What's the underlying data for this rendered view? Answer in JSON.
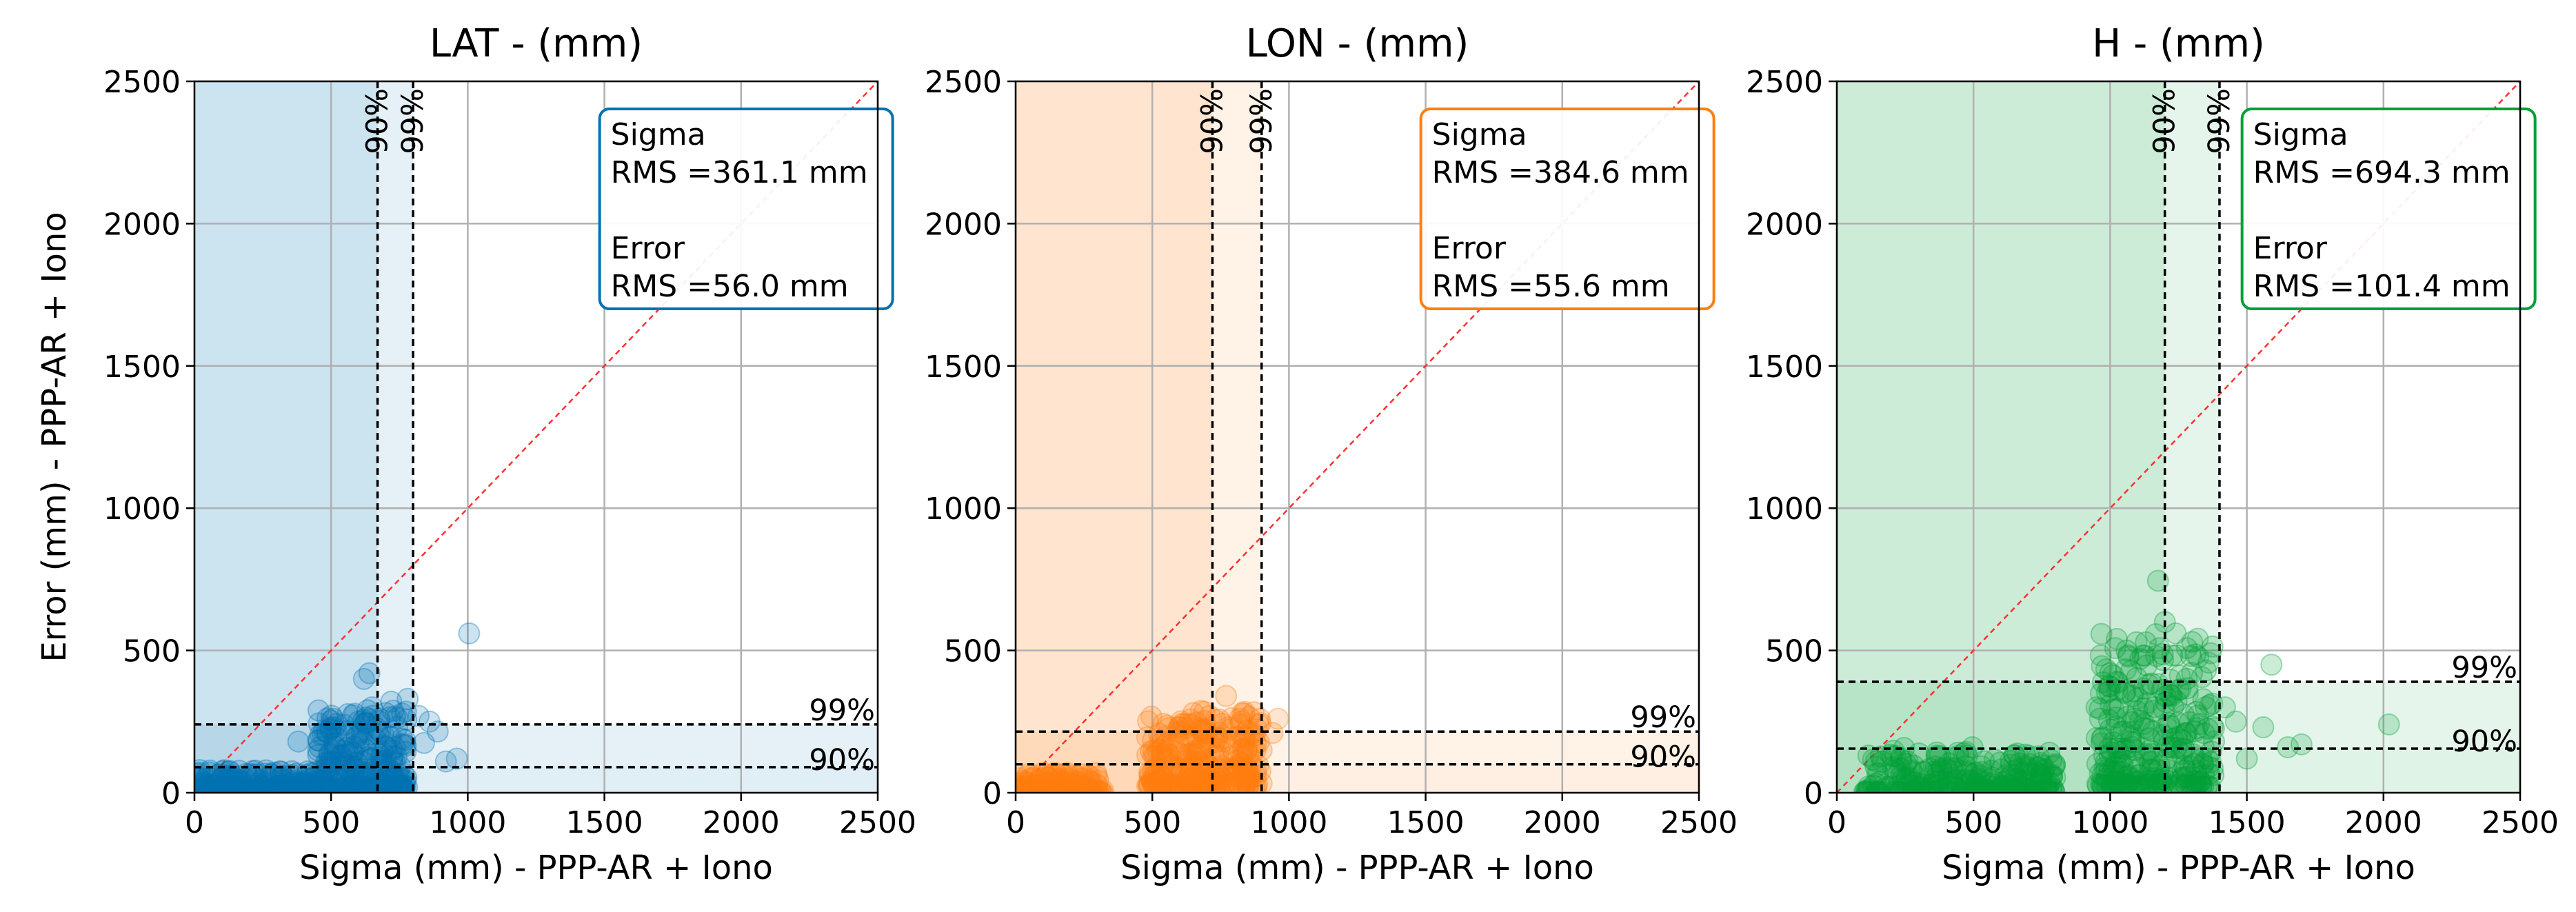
{
  "chart_data": [
    {
      "type": "scatter",
      "title": "LAT - (mm)",
      "xlabel": "Sigma  (mm) - PPP-AR + Iono",
      "ylabel": "Error  (mm) - PPP-AR + Iono",
      "xlim": [
        0,
        2500
      ],
      "ylim": [
        0,
        2500
      ],
      "xticks": [
        "0",
        "500",
        "1000",
        "1500",
        "2000",
        "2500"
      ],
      "yticks": [
        "0",
        "500",
        "1000",
        "1500",
        "2000",
        "2500"
      ],
      "grid": true,
      "color": "#0072B2",
      "sigma_p90": 670,
      "sigma_p99": 800,
      "error_p90": 90,
      "error_p99": 240,
      "p90_label": "90%",
      "p99_label": "99%",
      "legend_lines": [
        "Sigma",
        "RMS =361.1 mm",
        "",
        "Error",
        "RMS =56.0 mm"
      ],
      "legend_position": "top-right",
      "points": [
        [
          1005,
          560
        ],
        [
          640,
          420
        ],
        [
          620,
          400
        ],
        [
          720,
          320
        ],
        [
          780,
          330
        ],
        [
          860,
          250
        ],
        [
          890,
          215
        ],
        [
          820,
          270
        ],
        [
          650,
          300
        ],
        [
          700,
          280
        ],
        [
          600,
          250
        ],
        [
          550,
          200
        ],
        [
          380,
          180
        ],
        [
          700,
          160
        ],
        [
          760,
          190
        ],
        [
          840,
          175
        ],
        [
          960,
          120
        ],
        [
          920,
          110
        ],
        [
          560,
          140
        ],
        [
          500,
          110
        ]
      ],
      "clusters": [
        {
          "x": [
            0,
            480
          ],
          "y": [
            0,
            80
          ],
          "n": 260
        },
        {
          "x": [
            450,
            780
          ],
          "y": [
            10,
            300
          ],
          "n": 260
        }
      ]
    },
    {
      "type": "scatter",
      "title": "LON - (mm)",
      "xlabel": "Sigma  (mm) - PPP-AR + Iono",
      "ylabel": "",
      "xlim": [
        0,
        2500
      ],
      "ylim": [
        0,
        2500
      ],
      "xticks": [
        "0",
        "500",
        "1000",
        "1500",
        "2000",
        "2500"
      ],
      "yticks": [
        "0",
        "500",
        "1000",
        "1500",
        "2000",
        "2500"
      ],
      "grid": true,
      "color": "#FF7F0E",
      "sigma_p90": 720,
      "sigma_p99": 900,
      "error_p90": 100,
      "error_p99": 215,
      "p90_label": "90%",
      "p99_label": "99%",
      "legend_lines": [
        "Sigma",
        "RMS =384.6 mm",
        "",
        "Error",
        "RMS =55.6 mm"
      ],
      "legend_position": "top-right",
      "points": [
        [
          770,
          340
        ],
        [
          650,
          280
        ],
        [
          710,
          270
        ],
        [
          820,
          260
        ],
        [
          890,
          240
        ],
        [
          940,
          210
        ],
        [
          960,
          260
        ],
        [
          600,
          230
        ],
        [
          680,
          220
        ],
        [
          840,
          200
        ],
        [
          900,
          150
        ],
        [
          560,
          180
        ],
        [
          520,
          150
        ]
      ],
      "clusters": [
        {
          "x": [
            0,
            320
          ],
          "y": [
            0,
            70
          ],
          "n": 160
        },
        {
          "x": [
            480,
            900
          ],
          "y": [
            20,
            290
          ],
          "n": 280
        }
      ]
    },
    {
      "type": "scatter",
      "title": "H - (mm)",
      "xlabel": "Sigma  (mm) - PPP-AR + Iono",
      "ylabel": "",
      "xlim": [
        0,
        2500
      ],
      "ylim": [
        0,
        2500
      ],
      "xticks": [
        "0",
        "500",
        "1000",
        "1500",
        "2000",
        "2500"
      ],
      "yticks": [
        "0",
        "500",
        "1000",
        "1500",
        "2000",
        "2500"
      ],
      "grid": true,
      "color": "#00A037",
      "sigma_p90": 1200,
      "sigma_p99": 1400,
      "error_p90": 155,
      "error_p99": 390,
      "p90_label": "90%",
      "p99_label": "99%",
      "legend_lines": [
        "Sigma",
        "RMS =694.3 mm",
        "",
        "Error",
        "RMS =101.4 mm"
      ],
      "legend_position": "top-right",
      "points": [
        [
          1175,
          745
        ],
        [
          1200,
          600
        ],
        [
          1240,
          560
        ],
        [
          1060,
          500
        ],
        [
          1110,
          470
        ],
        [
          1300,
          530
        ],
        [
          1350,
          430
        ],
        [
          1420,
          300
        ],
        [
          1460,
          250
        ],
        [
          1590,
          450
        ],
        [
          1700,
          170
        ],
        [
          2020,
          240
        ],
        [
          1560,
          230
        ],
        [
          1650,
          160
        ],
        [
          1500,
          120
        ],
        [
          1380,
          180
        ],
        [
          950,
          300
        ],
        [
          1000,
          420
        ],
        [
          1140,
          380
        ],
        [
          1280,
          400
        ]
      ],
      "clusters": [
        {
          "x": [
            100,
            800
          ],
          "y": [
            0,
            160
          ],
          "n": 280
        },
        {
          "x": [
            950,
            1380
          ],
          "y": [
            20,
            560
          ],
          "n": 280
        }
      ]
    }
  ]
}
